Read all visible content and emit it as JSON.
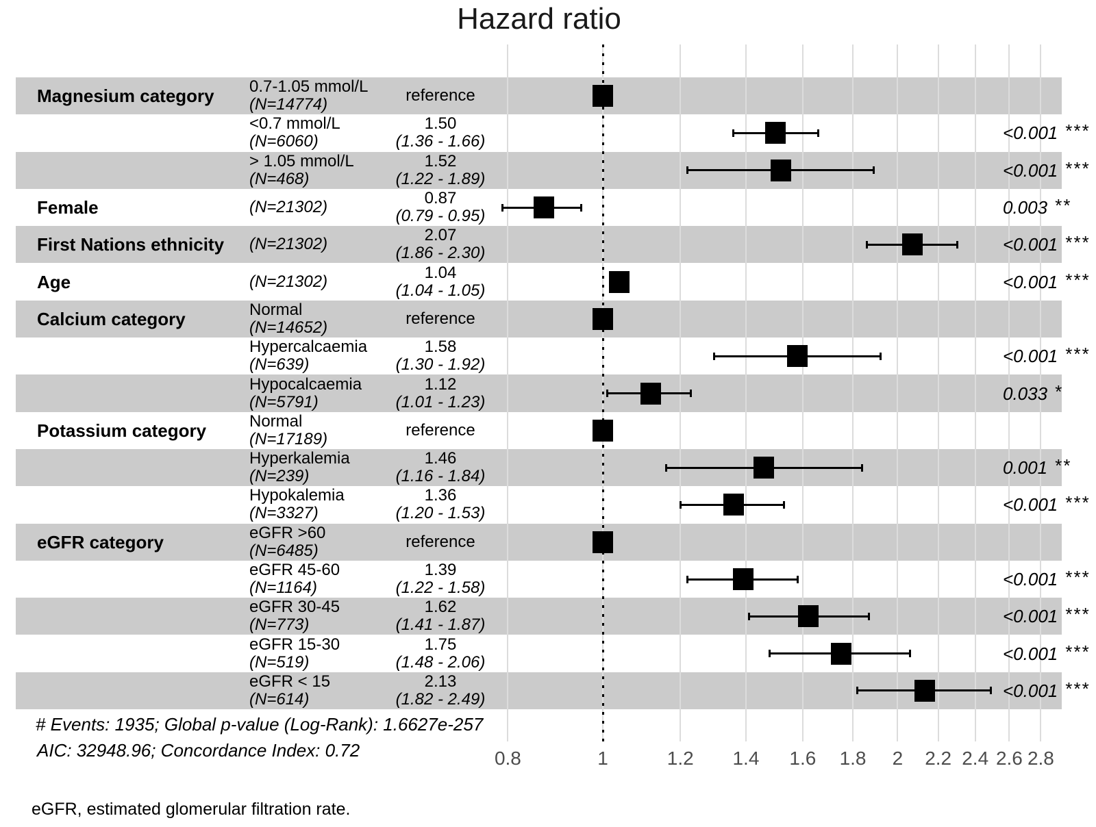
{
  "chart_data": {
    "type": "forest",
    "title": "Hazard ratio",
    "x_axis": {
      "scale": "log10",
      "reference_value": 1,
      "ticks": [
        {
          "value": 0.8,
          "label": "0.8"
        },
        {
          "value": 1,
          "label": "1"
        },
        {
          "value": 1.2,
          "label": "1.2"
        },
        {
          "value": 1.4,
          "label": "1.4"
        },
        {
          "value": 1.6,
          "label": "1.6"
        },
        {
          "value": 1.8,
          "label": "1.8"
        },
        {
          "value": 2,
          "label": "2"
        },
        {
          "value": 2.2,
          "label": "2.2"
        },
        {
          "value": 2.4,
          "label": "2.4"
        },
        {
          "value": 2.6,
          "label": "2.6"
        },
        {
          "value": 2.8,
          "label": "2.8"
        }
      ]
    },
    "rows": [
      {
        "variable": "Magnesium category",
        "level": "0.7-1.05 mmol/L",
        "n": "(N=14774)",
        "estimate": "reference",
        "reference": true,
        "hr": 1,
        "lo": null,
        "hi": null,
        "p": "",
        "stars": ""
      },
      {
        "variable": "",
        "level": "<0.7 mmol/L",
        "n": "(N=6060)",
        "estimate": "1.50",
        "ci": "(1.36 - 1.66)",
        "reference": false,
        "hr": 1.5,
        "lo": 1.36,
        "hi": 1.66,
        "p": "<0.001",
        "stars": "***"
      },
      {
        "variable": "",
        "level": "> 1.05 mmol/L",
        "n": "(N=468)",
        "estimate": "1.52",
        "ci": "(1.22 - 1.89)",
        "reference": false,
        "hr": 1.52,
        "lo": 1.22,
        "hi": 1.89,
        "p": "<0.001",
        "stars": "***"
      },
      {
        "variable": "Female",
        "level": "",
        "n": "(N=21302)",
        "estimate": "0.87",
        "ci": "(0.79 - 0.95)",
        "reference": false,
        "hr": 0.87,
        "lo": 0.79,
        "hi": 0.95,
        "p": "0.003",
        "stars": "**"
      },
      {
        "variable": "First Nations ethnicity",
        "level": "",
        "n": "(N=21302)",
        "estimate": "2.07",
        "ci": "(1.86 - 2.30)",
        "reference": false,
        "hr": 2.07,
        "lo": 1.86,
        "hi": 2.3,
        "p": "<0.001",
        "stars": "***"
      },
      {
        "variable": "Age",
        "level": "",
        "n": "(N=21302)",
        "estimate": "1.04",
        "ci": "(1.04 - 1.05)",
        "reference": false,
        "hr": 1.04,
        "lo": 1.04,
        "hi": 1.05,
        "p": "<0.001",
        "stars": "***"
      },
      {
        "variable": "Calcium category",
        "level": "Normal",
        "n": "(N=14652)",
        "estimate": "reference",
        "reference": true,
        "hr": 1,
        "lo": null,
        "hi": null,
        "p": "",
        "stars": ""
      },
      {
        "variable": "",
        "level": "Hypercalcaemia",
        "n": "(N=639)",
        "estimate": "1.58",
        "ci": "(1.30 - 1.92)",
        "reference": false,
        "hr": 1.58,
        "lo": 1.3,
        "hi": 1.92,
        "p": "<0.001",
        "stars": "***"
      },
      {
        "variable": "",
        "level": "Hypocalcaemia",
        "n": "(N=5791)",
        "estimate": "1.12",
        "ci": "(1.01 - 1.23)",
        "reference": false,
        "hr": 1.12,
        "lo": 1.01,
        "hi": 1.23,
        "p": "0.033",
        "stars": "*"
      },
      {
        "variable": "Potassium category",
        "level": "Normal",
        "n": "(N=17189)",
        "estimate": "reference",
        "reference": true,
        "hr": 1,
        "lo": null,
        "hi": null,
        "p": "",
        "stars": ""
      },
      {
        "variable": "",
        "level": "Hyperkalemia",
        "n": "(N=239)",
        "estimate": "1.46",
        "ci": "(1.16 - 1.84)",
        "reference": false,
        "hr": 1.46,
        "lo": 1.16,
        "hi": 1.84,
        "p": "0.001",
        "stars": "**"
      },
      {
        "variable": "",
        "level": "Hypokalemia",
        "n": "(N=3327)",
        "estimate": "1.36",
        "ci": "(1.20 - 1.53)",
        "reference": false,
        "hr": 1.36,
        "lo": 1.2,
        "hi": 1.53,
        "p": "<0.001",
        "stars": "***"
      },
      {
        "variable": "eGFR category",
        "level": "eGFR >60",
        "n": "(N=6485)",
        "estimate": "reference",
        "reference": true,
        "hr": 1,
        "lo": null,
        "hi": null,
        "p": "",
        "stars": ""
      },
      {
        "variable": "",
        "level": "eGFR 45-60",
        "n": "(N=1164)",
        "estimate": "1.39",
        "ci": "(1.22 - 1.58)",
        "reference": false,
        "hr": 1.39,
        "lo": 1.22,
        "hi": 1.58,
        "p": "<0.001",
        "stars": "***"
      },
      {
        "variable": "",
        "level": "eGFR 30-45",
        "n": "(N=773)",
        "estimate": "1.62",
        "ci": "(1.41 - 1.87)",
        "reference": false,
        "hr": 1.62,
        "lo": 1.41,
        "hi": 1.87,
        "p": "<0.001",
        "stars": "***"
      },
      {
        "variable": "",
        "level": "eGFR 15-30",
        "n": "(N=519)",
        "estimate": "1.75",
        "ci": "(1.48 - 2.06)",
        "reference": false,
        "hr": 1.75,
        "lo": 1.48,
        "hi": 2.06,
        "p": "<0.001",
        "stars": "***"
      },
      {
        "variable": "",
        "level": "eGFR < 15",
        "n": "(N=614)",
        "estimate": "2.13",
        "ci": "(1.82 - 2.49)",
        "reference": false,
        "hr": 2.13,
        "lo": 1.82,
        "hi": 2.49,
        "p": "<0.001",
        "stars": "***"
      }
    ],
    "footnotes": {
      "events_line": "# Events: 1935; Global p-value (Log-Rank): 1.6627e-257",
      "aic_line": "AIC: 32948.96; Concordance Index: 0.72"
    },
    "caption": "eGFR, estimated glomerular filtration rate.",
    "colors": {
      "stripe": "#cbcbcb",
      "gridline": "#dcdcdc",
      "marker": "#000000",
      "axis_text": "#4d4d4d"
    }
  }
}
